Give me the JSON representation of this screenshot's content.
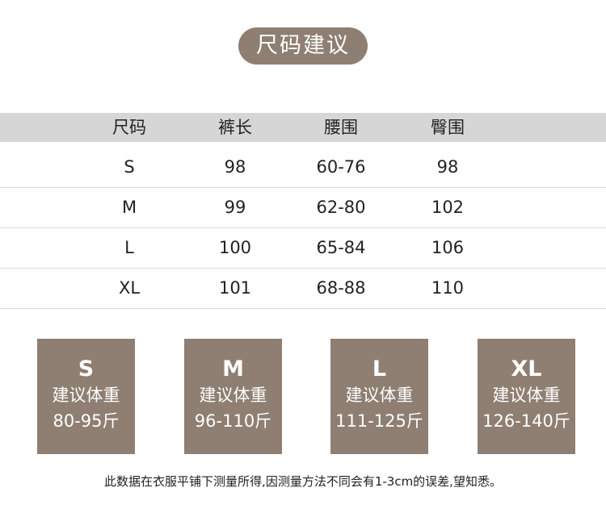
{
  "title": "尺码建议",
  "table": {
    "headers": [
      "尺码",
      "裤长",
      "腰围",
      "臀围"
    ],
    "rows": [
      [
        "S",
        "98",
        "60-76",
        "98"
      ],
      [
        "M",
        "99",
        "62-80",
        "102"
      ],
      [
        "L",
        "100",
        "65-84",
        "106"
      ],
      [
        "XL",
        "101",
        "68-88",
        "110"
      ]
    ]
  },
  "weights": [
    {
      "size": "S",
      "label": "建议体重",
      "range": "80-95斤"
    },
    {
      "size": "M",
      "label": "建议体重",
      "range": "96-110斤"
    },
    {
      "size": "L",
      "label": "建议体重",
      "range": "111-125斤"
    },
    {
      "size": "XL",
      "label": "建议体重",
      "range": "126-140斤"
    }
  ],
  "note": "此数据在衣服平铺下测量所得,因测量方法不同会有1-3cm的误差,望知悉。",
  "colors": {
    "accent": "#8e7f72",
    "header_bg": "#d6d6d6"
  }
}
